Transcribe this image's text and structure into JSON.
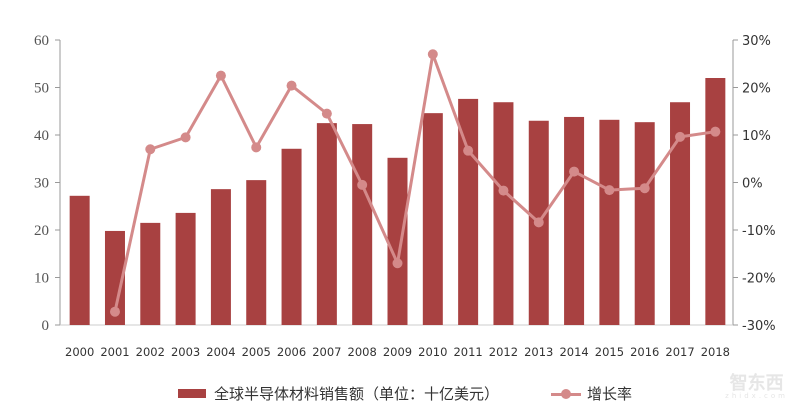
{
  "chart_data": {
    "type": "bar+line",
    "categories": [
      "2000",
      "2001",
      "2002",
      "2003",
      "2004",
      "2005",
      "2006",
      "2007",
      "2008",
      "2009",
      "2010",
      "2011",
      "2012",
      "2013",
      "2014",
      "2015",
      "2016",
      "2017",
      "2018"
    ],
    "series": [
      {
        "name": "全球半导体材料销售额（单位：十亿美元）",
        "type": "bar",
        "axis": "left",
        "color": "#a84141",
        "values": [
          27.2,
          19.8,
          21.5,
          23.6,
          28.6,
          30.5,
          37.1,
          42.5,
          42.3,
          35.2,
          44.6,
          47.6,
          46.9,
          43.0,
          43.8,
          43.2,
          42.7,
          46.9,
          52.0
        ]
      },
      {
        "name": "增长率",
        "type": "line",
        "axis": "right",
        "color": "#d48a8a",
        "values": [
          null,
          -27.2,
          7.0,
          9.5,
          22.5,
          7.4,
          20.4,
          14.5,
          -0.5,
          -17.0,
          27.0,
          6.7,
          -1.7,
          -8.4,
          2.3,
          -1.6,
          -1.2,
          9.6,
          10.7
        ]
      }
    ],
    "y_left": {
      "lim": [
        0,
        60
      ],
      "ticks": [
        "0",
        "10",
        "20",
        "30",
        "40",
        "50",
        "60"
      ]
    },
    "y_right": {
      "lim": [
        -30,
        30
      ],
      "ticks": [
        "-30%",
        "-20%",
        "-10%",
        "0%",
        "10%",
        "20%",
        "30%"
      ]
    },
    "grid": false,
    "legend": "bottom"
  },
  "legend": {
    "bar_label": "全球半导体材料销售额（单位：十亿美元）",
    "line_label": "增长率"
  },
  "watermark": {
    "text": "智东西",
    "sub": "zhidx.com"
  }
}
